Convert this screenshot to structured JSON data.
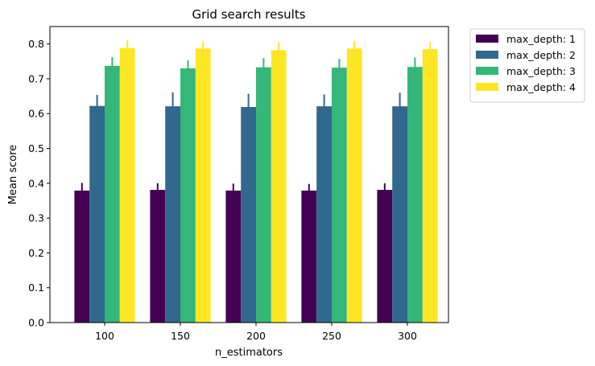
{
  "chart_data": {
    "type": "bar",
    "title": "Grid search results",
    "xlabel": "n_estimators",
    "ylabel": "Mean score",
    "categories": [
      "100",
      "150",
      "200",
      "250",
      "300"
    ],
    "ylim": [
      0,
      0.85
    ],
    "yticks": [
      "0.0",
      "0.1",
      "0.2",
      "0.3",
      "0.4",
      "0.5",
      "0.6",
      "0.7",
      "0.8"
    ],
    "grid": false,
    "legend_position": "outside-top-right",
    "error_bars": true,
    "series": [
      {
        "name": "max_depth: 1",
        "color": "#440154",
        "values": [
          0.379,
          0.381,
          0.379,
          0.379,
          0.381
        ],
        "errors": [
          0.022,
          0.019,
          0.02,
          0.019,
          0.019
        ]
      },
      {
        "name": "max_depth: 2",
        "color": "#31688e",
        "values": [
          0.622,
          0.621,
          0.619,
          0.621,
          0.621
        ],
        "errors": [
          0.032,
          0.04,
          0.038,
          0.034,
          0.039
        ]
      },
      {
        "name": "max_depth: 3",
        "color": "#35b779",
        "values": [
          0.737,
          0.73,
          0.733,
          0.732,
          0.734
        ],
        "errors": [
          0.025,
          0.023,
          0.026,
          0.025,
          0.027
        ]
      },
      {
        "name": "max_depth: 4",
        "color": "#fde725",
        "values": [
          0.788,
          0.787,
          0.782,
          0.787,
          0.785
        ],
        "errors": [
          0.022,
          0.021,
          0.022,
          0.022,
          0.022
        ]
      }
    ]
  }
}
